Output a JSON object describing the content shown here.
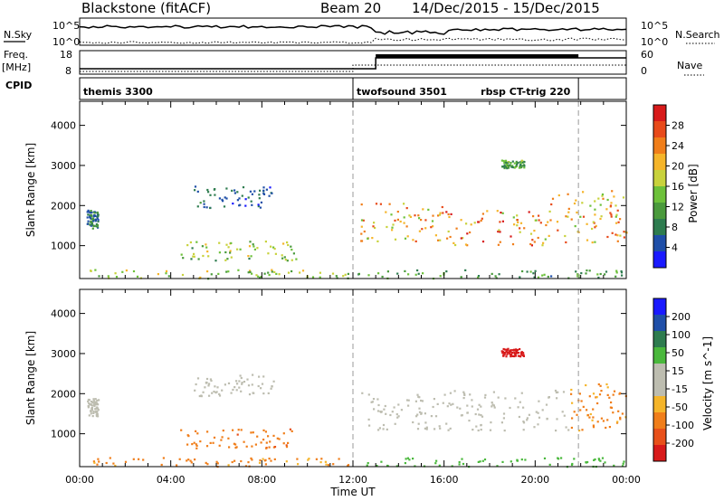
{
  "header": {
    "radar": "Blackstone (fitACF)",
    "beam": "Beam 20",
    "dates": "14/Dec/2015 - 15/Dec/2015"
  },
  "noise_panel": {
    "left_label": "N.Sky",
    "right_label": "N.Search",
    "ticks": [
      "10^5",
      "10^0"
    ]
  },
  "freq_panel": {
    "left_label_line1": "Freq.",
    "left_label_line2": "[MHz]",
    "left_ticks": [
      "18",
      "8"
    ],
    "right_label": "Nave",
    "right_ticks": [
      "60",
      "0"
    ]
  },
  "cpid_panel": {
    "label": "CPID",
    "entries": [
      {
        "text": "themis 3300",
        "start": 0
      },
      {
        "text": "twofsound 3501",
        "start": 12.0
      },
      {
        "text": "rbsp CT-trig 220",
        "start": 21.9
      }
    ]
  },
  "colors": {
    "power": [
      "#1a1aff",
      "#1f4fa8",
      "#2e7c4f",
      "#4a9a3c",
      "#6dc13a",
      "#c8d23c",
      "#f5b52a",
      "#f07e1a",
      "#e84a1a",
      "#d81a1a"
    ],
    "velocity": [
      "#d81a1a",
      "#e8501a",
      "#f07e1a",
      "#f5b52a",
      "#bdbdb0",
      "#bdbdb0",
      "#4ab83c",
      "#2e7c4f",
      "#1f4fa8",
      "#1a1aff"
    ]
  },
  "chart_data": [
    {
      "name": "Power",
      "type": "heatmap",
      "xlabel": "Time UT",
      "ylabel": "Slant Range [km]",
      "x_ticks": [
        "00:00",
        "04:00",
        "08:00",
        "12:00",
        "16:00",
        "20:00",
        "00:00"
      ],
      "xlim": [
        0,
        24
      ],
      "ylim": [
        180,
        4600
      ],
      "y_ticks": [
        1000,
        2000,
        3000,
        4000
      ],
      "colorbar_label": "Power [dB]",
      "colorbar_ticks": [
        4,
        8,
        12,
        16,
        20,
        24,
        28
      ],
      "colorbar_range": [
        0,
        30
      ],
      "marker_lines_hours": [
        12.0,
        21.9
      ],
      "blobs": [
        {
          "t0": 0.3,
          "t1": 0.8,
          "r0": 1450,
          "r1": 1900,
          "value": 7
        },
        {
          "t0": 4.3,
          "t1": 9.5,
          "r0": 650,
          "r1": 1150,
          "value": 14
        },
        {
          "t0": 5.0,
          "t1": 8.5,
          "r0": 1950,
          "r1": 2500,
          "value": 6
        },
        {
          "t0": 0.2,
          "t1": 11.8,
          "r0": 200,
          "r1": 420,
          "value": 15
        },
        {
          "t0": 12.3,
          "t1": 16.0,
          "r0": 1100,
          "r1": 2100,
          "value": 20
        },
        {
          "t0": 16.0,
          "t1": 20.5,
          "r0": 1000,
          "r1": 1900,
          "value": 22
        },
        {
          "t0": 20.5,
          "t1": 24.0,
          "r0": 1100,
          "r1": 2400,
          "value": 20
        },
        {
          "t0": 18.5,
          "t1": 19.5,
          "r0": 2950,
          "r1": 3150,
          "value": 11
        },
        {
          "t0": 12.2,
          "t1": 24.0,
          "r0": 200,
          "r1": 420,
          "value": 10
        }
      ]
    },
    {
      "name": "Velocity",
      "type": "heatmap",
      "xlabel": "Time UT",
      "ylabel": "Slant Range [km]",
      "x_ticks": [
        "00:00",
        "04:00",
        "08:00",
        "12:00",
        "16:00",
        "20:00",
        "00:00"
      ],
      "xlim": [
        0,
        24
      ],
      "ylim": [
        180,
        4600
      ],
      "y_ticks": [
        1000,
        2000,
        3000,
        4000
      ],
      "colorbar_label": "Velocity [m s^-1]",
      "colorbar_ticks": [
        200,
        100,
        50,
        15,
        -15,
        -50,
        -100,
        -200
      ],
      "marker_lines_hours": [
        12.0,
        21.9
      ],
      "blobs": [
        {
          "t0": 0.3,
          "t1": 0.8,
          "r0": 1450,
          "r1": 1900,
          "value": 0
        },
        {
          "t0": 4.3,
          "t1": 9.5,
          "r0": 650,
          "r1": 1150,
          "value": -60
        },
        {
          "t0": 5.0,
          "t1": 8.5,
          "r0": 1950,
          "r1": 2500,
          "value": 0
        },
        {
          "t0": 0.2,
          "t1": 11.8,
          "r0": 200,
          "r1": 420,
          "value": -40
        },
        {
          "t0": 12.3,
          "t1": 21.5,
          "r0": 1100,
          "r1": 2100,
          "value": 0
        },
        {
          "t0": 21.5,
          "t1": 24.0,
          "r0": 1100,
          "r1": 2300,
          "value": -40
        },
        {
          "t0": 18.5,
          "t1": 19.5,
          "r0": 2950,
          "r1": 3150,
          "value": -200
        },
        {
          "t0": 12.2,
          "t1": 24.0,
          "r0": 200,
          "r1": 420,
          "value": 30
        }
      ]
    }
  ]
}
